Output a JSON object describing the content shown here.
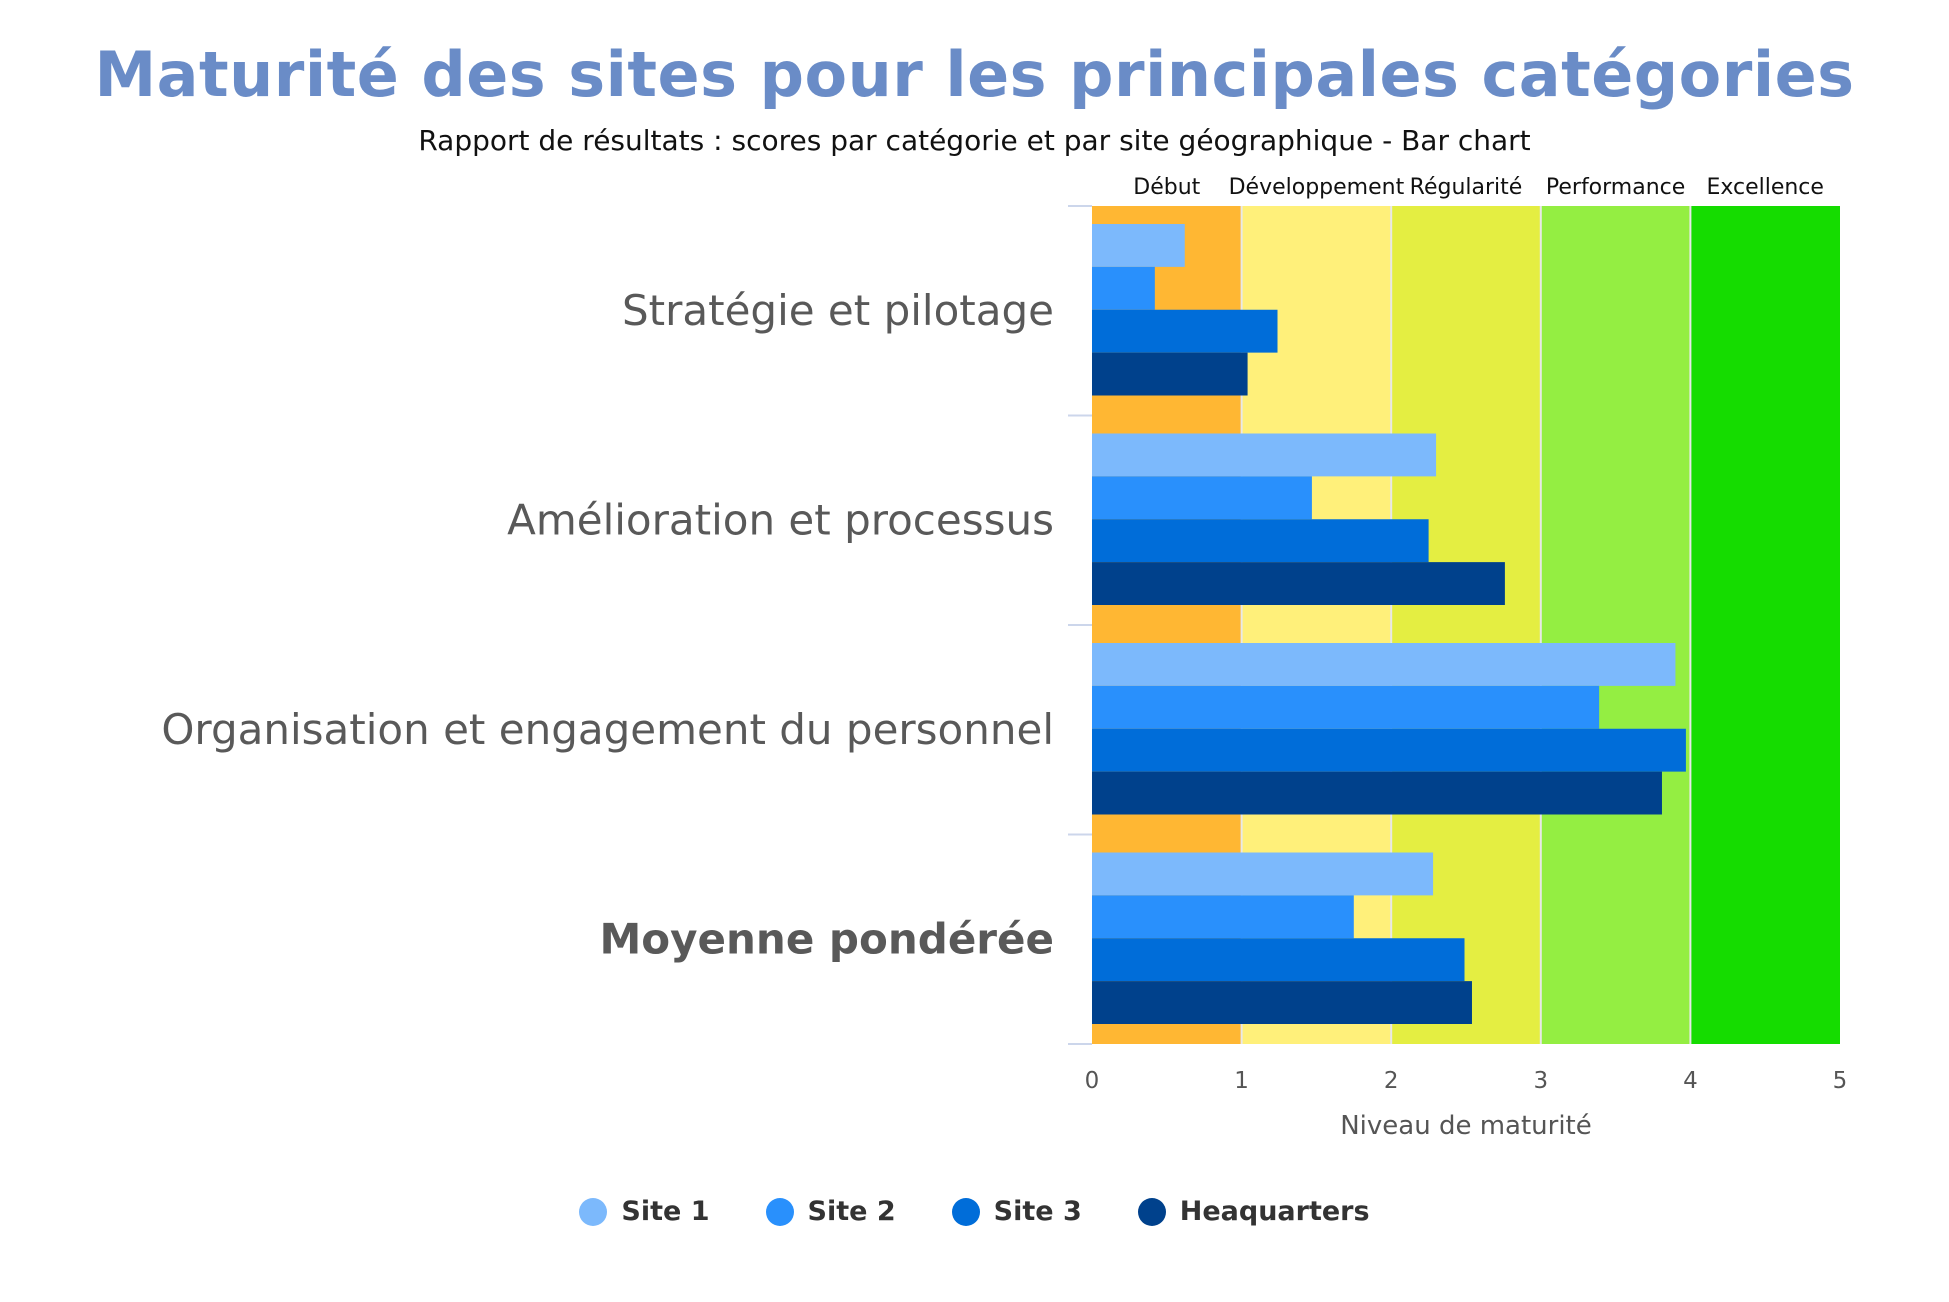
{
  "title": "Maturité des sites pour les principales catégories",
  "subtitle": "Rapport de résultats : scores par catégorie et par site géographique - Bar chart",
  "chart_data": {
    "type": "bar",
    "orientation": "horizontal",
    "categories": [
      "Stratégie et pilotage",
      "Amélioration et processus",
      "Organisation et engagement du personnel",
      "Moyenne pondérée"
    ],
    "bold_categories": [
      "Moyenne pondérée"
    ],
    "series": [
      {
        "name": "Site 1",
        "color": "#7cb9fc",
        "values": [
          0.62,
          2.3,
          3.9,
          2.28
        ]
      },
      {
        "name": "Site 2",
        "color": "#2990fc",
        "values": [
          0.42,
          1.47,
          3.39,
          1.75
        ]
      },
      {
        "name": "Site 3",
        "color": "#006dd9",
        "values": [
          1.24,
          2.25,
          3.97,
          2.49
        ]
      },
      {
        "name": "Heaquarters",
        "color": "#00418c",
        "values": [
          1.04,
          2.76,
          3.81,
          2.54
        ]
      }
    ],
    "bands": [
      {
        "label": "Début",
        "from": 0,
        "to": 1,
        "color": "#ffb733"
      },
      {
        "label": "Développement",
        "from": 1,
        "to": 2,
        "color": "#fff07a"
      },
      {
        "label": "Régularité",
        "from": 2,
        "to": 3,
        "color": "#e4ee42"
      },
      {
        "label": "Performance",
        "from": 3,
        "to": 4,
        "color": "#94ee42"
      },
      {
        "label": "Excellence",
        "from": 4,
        "to": 5,
        "color": "#15dc00"
      }
    ],
    "xlim": [
      0,
      5
    ],
    "xticks": [
      "0",
      "1",
      "2",
      "3",
      "4",
      "5"
    ],
    "xlabel": "Niveau de maturité",
    "ylabel": "",
    "legend_position": "bottom"
  }
}
